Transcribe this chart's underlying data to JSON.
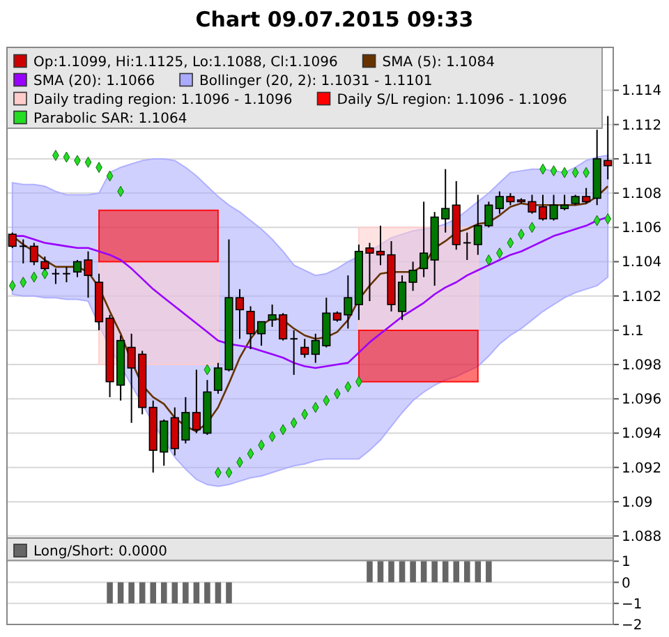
{
  "chart_data": [
    {
      "type": "candlestick",
      "title": "Chart 09.07.2015 09:33",
      "categories": [
        null,
        null,
        null,
        null,
        null,
        null,
        null,
        null,
        null,
        null,
        null,
        null,
        null,
        null,
        null,
        null,
        null,
        null,
        null,
        null,
        null,
        null,
        null,
        null,
        null,
        null,
        null,
        null,
        null,
        null,
        null,
        null,
        null,
        null,
        null,
        null,
        null,
        null,
        null,
        null,
        null,
        null,
        null,
        null,
        null,
        null,
        null,
        null,
        null,
        null,
        null,
        null,
        null,
        null,
        null,
        null
      ],
      "ylim": [
        1.0878,
        1.1165
      ],
      "yticks": [
        1.088,
        1.09,
        1.092,
        1.094,
        1.096,
        1.098,
        1.1,
        1.102,
        1.104,
        1.106,
        1.108,
        1.11,
        1.112,
        1.114
      ],
      "grid": "y",
      "legend": "top",
      "tick_labels": "y",
      "series": [
        {
          "type": "candlestick",
          "name": "Op:1.1099, Hi:1.1125, Lo:1.1088, Cl:1.1096",
          "color": "#cc0000",
          "colors": [
            "#cc0000",
            "#000000",
            "#cc0000",
            "#cc0000",
            "#000000",
            "#000000",
            "#007700",
            "#cc0000",
            "#cc0000",
            "#cc0000",
            "#007700",
            "#cc0000",
            "#cc0000",
            "#cc0000",
            "#007700",
            "#cc0000",
            "#007700",
            "#cc0000",
            "#007700",
            "#007700",
            "#007700",
            "#cc0000",
            "#cc0000",
            "#007700",
            "#007700",
            "#cc0000",
            "#000000",
            "#cc0000",
            "#007700",
            "#007700",
            "#cc0000",
            "#007700",
            "#007700",
            "#cc0000",
            "#cc0000",
            "#cc0000",
            "#007700",
            "#007700",
            "#007700",
            "#007700",
            "#007700",
            "#cc0000",
            "#000000",
            "#007700",
            "#007700",
            "#007700",
            "#cc0000",
            "#cc0000",
            "#cc0000",
            "#cc0000",
            "#007700",
            "#007700",
            "#007700",
            "#cc0000",
            "#007700",
            "#cc0000"
          ],
          "ohlc": [
            [
              1.1056,
              1.1057,
              1.1048,
              1.1049
            ],
            [
              1.1049,
              1.1053,
              1.1039,
              1.1049
            ],
            [
              1.1049,
              1.1051,
              1.1038,
              1.104
            ],
            [
              1.104,
              1.1043,
              1.1035,
              1.1036
            ],
            [
              1.1033,
              1.1036,
              1.1027,
              1.1033
            ],
            [
              1.1033,
              1.1037,
              1.1028,
              1.1033
            ],
            [
              1.1034,
              1.1041,
              1.1031,
              1.104
            ],
            [
              1.1041,
              1.1046,
              1.1019,
              1.1032
            ],
            [
              1.1028,
              1.1033,
              1.1,
              1.1005
            ],
            [
              1.1007,
              1.1009,
              1.0961,
              1.097
            ],
            [
              1.0968,
              1.0997,
              1.0959,
              1.0994
            ],
            [
              1.099,
              1.0998,
              1.0946,
              1.0978
            ],
            [
              1.0986,
              1.0988,
              1.0951,
              1.0955
            ],
            [
              1.0955,
              1.0959,
              1.0917,
              1.093
            ],
            [
              1.0929,
              1.0948,
              1.0921,
              1.0947
            ],
            [
              1.0949,
              1.0955,
              1.0927,
              1.0931
            ],
            [
              1.0936,
              1.0961,
              1.0934,
              1.0952
            ],
            [
              1.0952,
              1.0977,
              1.094,
              1.0942
            ],
            [
              1.094,
              1.0971,
              1.0939,
              1.0964
            ],
            [
              1.0965,
              1.0981,
              1.0963,
              1.0978
            ],
            [
              1.0977,
              1.1053,
              1.0976,
              1.1019
            ],
            [
              1.1019,
              1.1024,
              1.0995,
              1.1012
            ],
            [
              1.1011,
              1.1014,
              1.0989,
              1.0998
            ],
            [
              1.0998,
              1.1005,
              1.0991,
              1.1005
            ],
            [
              1.1006,
              1.1015,
              1.1002,
              1.1009
            ],
            [
              1.1009,
              1.101,
              1.0994,
              1.0995
            ],
            [
              1.0995,
              1.1,
              1.0974,
              1.0995
            ],
            [
              1.099,
              1.0995,
              1.0984,
              1.0986
            ],
            [
              1.0986,
              1.0998,
              1.0981,
              1.0994
            ],
            [
              1.0991,
              1.1019,
              1.099,
              1.101
            ],
            [
              1.101,
              1.1011,
              1.1005,
              1.1006
            ],
            [
              1.1009,
              1.1032,
              1.1001,
              1.1019
            ],
            [
              1.1015,
              1.105,
              1.1006,
              1.1046
            ],
            [
              1.1048,
              1.1051,
              1.1017,
              1.1045
            ],
            [
              1.1046,
              1.1061,
              1.1038,
              1.1044
            ],
            [
              1.1044,
              1.1052,
              1.1011,
              1.1015
            ],
            [
              1.1011,
              1.1032,
              1.1006,
              1.1028
            ],
            [
              1.1028,
              1.104,
              1.1023,
              1.1035
            ],
            [
              1.1036,
              1.1075,
              1.1031,
              1.1045
            ],
            [
              1.1041,
              1.1069,
              1.1026,
              1.1066
            ],
            [
              1.1065,
              1.1094,
              1.1057,
              1.1071
            ],
            [
              1.1073,
              1.1087,
              1.1047,
              1.105
            ],
            [
              1.1051,
              1.1057,
              1.1041,
              1.1051
            ],
            [
              1.105,
              1.1079,
              1.1044,
              1.1061
            ],
            [
              1.1061,
              1.1075,
              1.106,
              1.1073
            ],
            [
              1.1071,
              1.1081,
              1.1068,
              1.1078
            ],
            [
              1.1078,
              1.108,
              1.1073,
              1.1075
            ],
            [
              1.1076,
              1.1077,
              1.1074,
              1.1075
            ],
            [
              1.1075,
              1.1079,
              1.1068,
              1.1069
            ],
            [
              1.1072,
              1.1079,
              1.1064,
              1.1065
            ],
            [
              1.1065,
              1.1079,
              1.1064,
              1.1073
            ],
            [
              1.1071,
              1.1079,
              1.107,
              1.1073
            ],
            [
              1.1074,
              1.1079,
              1.1073,
              1.1078
            ],
            [
              1.1078,
              1.1083,
              1.1074,
              1.1075
            ],
            [
              1.1077,
              1.1117,
              1.1073,
              1.11
            ],
            [
              1.1099,
              1.1125,
              1.1088,
              1.1096
            ]
          ]
        },
        {
          "type": "line",
          "name": "SMA (5): 1.1084",
          "color": "#663300",
          "values": [
            1.1055,
            1.105,
            1.1046,
            1.1041,
            1.1037,
            1.1037,
            1.1037,
            1.1034,
            1.1025,
            1.1011,
            1.0998,
            1.0982,
            1.0968,
            1.0961,
            1.0957,
            1.0949,
            1.0944,
            1.0941,
            1.0946,
            1.0955,
            1.0969,
            1.0984,
            1.0995,
            1.1003,
            1.1007,
            1.1006,
            1.1001,
            1.0997,
            1.0995,
            1.0996,
            1.0999,
            1.1006,
            1.1018,
            1.1026,
            1.1033,
            1.1034,
            1.1034,
            1.1034,
            1.1038,
            1.1048,
            1.1052,
            1.1057,
            1.1059,
            1.1062,
            1.1063,
            1.1067,
            1.1072,
            1.1074,
            1.1073,
            1.1073,
            1.1073,
            1.1073,
            1.1073,
            1.1074,
            1.1078,
            1.1084
          ]
        },
        {
          "type": "line",
          "name": "SMA (20): 1.1066",
          "color": "#9900ff",
          "values": [
            1.1055,
            1.1055,
            1.1053,
            1.1051,
            1.105,
            1.1049,
            1.1048,
            1.1048,
            1.1046,
            1.1044,
            1.1041,
            1.1036,
            1.103,
            1.1024,
            1.1019,
            1.1014,
            1.1009,
            1.1004,
            1.0999,
            1.0994,
            1.0992,
            1.0991,
            1.099,
            1.0988,
            1.0986,
            1.0984,
            1.0981,
            1.0979,
            1.0978,
            1.0979,
            1.098,
            1.0981,
            1.0987,
            1.0993,
            1.0998,
            1.1003,
            1.1008,
            1.1012,
            1.1016,
            1.1021,
            1.1025,
            1.1028,
            1.1032,
            1.1035,
            1.1038,
            1.1041,
            1.1044,
            1.1046,
            1.1049,
            1.1052,
            1.1055,
            1.1057,
            1.1059,
            1.1061,
            1.1064,
            1.1066
          ]
        },
        {
          "type": "area",
          "name": "Bollinger (20, 2): 1.1031 - 1.1101",
          "color": "#aaaaff",
          "values": [
            null,
            null,
            null,
            null,
            null,
            null,
            null,
            null,
            null,
            null,
            null,
            null,
            null,
            null,
            null,
            null,
            null,
            null,
            null,
            null,
            null,
            null,
            null,
            null,
            null,
            null,
            null,
            null,
            null,
            null,
            null,
            null,
            null,
            null,
            null,
            null,
            null,
            null,
            null,
            null,
            null,
            null,
            null,
            null,
            null,
            null,
            null,
            null,
            null,
            null,
            null,
            null,
            null,
            null,
            null,
            null
          ],
          "upper": [
            1.1086,
            1.1085,
            1.1085,
            1.1084,
            1.1081,
            1.1079,
            1.1079,
            1.1079,
            1.108,
            1.1092,
            1.1095,
            1.1097,
            1.1099,
            1.11,
            1.11,
            1.1099,
            1.1095,
            1.109,
            1.1084,
            1.1078,
            1.1073,
            1.1069,
            1.1064,
            1.1059,
            1.1053,
            1.1046,
            1.1038,
            1.1035,
            1.1032,
            1.1033,
            1.1036,
            1.104,
            1.1043,
            1.1046,
            1.105,
            1.1054,
            1.1056,
            1.1058,
            1.1059,
            1.106,
            1.1062,
            1.1065,
            1.107,
            1.1075,
            1.108,
            1.1086,
            1.1092,
            1.1093,
            1.1094,
            1.1094,
            1.1093,
            1.1092,
            1.1095,
            1.1099,
            1.1101,
            1.1102
          ],
          "lower": [
            1.1021,
            1.102,
            1.102,
            1.1019,
            1.1019,
            1.1018,
            1.1018,
            1.1017,
            1.1003,
            1.099,
            1.0979,
            1.0968,
            1.0957,
            1.0946,
            1.0936,
            1.0926,
            1.0919,
            1.0913,
            1.091,
            1.0909,
            1.091,
            1.0912,
            1.0914,
            1.0915,
            1.0917,
            1.0919,
            1.0921,
            1.0922,
            1.0924,
            1.0925,
            1.0925,
            1.0925,
            1.0925,
            1.093,
            1.0936,
            1.0944,
            1.0952,
            1.0959,
            1.0964,
            1.0968,
            1.0971,
            1.0973,
            1.0976,
            1.0979,
            1.0985,
            1.0992,
            1.0997,
            1.1001,
            1.1006,
            1.1011,
            1.1015,
            1.1019,
            1.1022,
            1.1024,
            1.1026,
            1.1031
          ]
        },
        {
          "type": "area",
          "name": "Daily trading region: 1.1096 - 1.1096",
          "color": "#ffcccc",
          "values": [
            null,
            null,
            null,
            null,
            null,
            null,
            null,
            null,
            null,
            null,
            null,
            null,
            null,
            null,
            null,
            null,
            null,
            null,
            null,
            null,
            null,
            null,
            null,
            null,
            null,
            null,
            null,
            null,
            null,
            null,
            null,
            null,
            null,
            null,
            null,
            null,
            null,
            null,
            null,
            null,
            null,
            null,
            null,
            null,
            null,
            null,
            null,
            null,
            null,
            null,
            null,
            null,
            null,
            null,
            null,
            null
          ],
          "upper": [
            null,
            null,
            null,
            null,
            null,
            null,
            null,
            null,
            1.104,
            1.104,
            1.104,
            1.104,
            1.104,
            1.104,
            1.104,
            1.104,
            1.104,
            1.104,
            1.104,
            1.104,
            null,
            null,
            null,
            null,
            null,
            null,
            null,
            null,
            null,
            null,
            null,
            null,
            1.106,
            1.106,
            1.106,
            1.106,
            1.106,
            1.106,
            1.106,
            1.106,
            1.106,
            1.106,
            1.106,
            1.106,
            null,
            null,
            null,
            null,
            null,
            null,
            null,
            null,
            null,
            null,
            null,
            null
          ],
          "lower": [
            null,
            null,
            null,
            null,
            null,
            null,
            null,
            null,
            1.098,
            1.098,
            1.098,
            1.098,
            1.098,
            1.098,
            1.098,
            1.098,
            1.098,
            1.098,
            1.098,
            1.098,
            null,
            null,
            null,
            null,
            null,
            null,
            null,
            null,
            null,
            null,
            null,
            null,
            1.1,
            1.1,
            1.1,
            1.1,
            1.1,
            1.1,
            1.1,
            1.1,
            1.1,
            1.1,
            1.1,
            1.1,
            null,
            null,
            null,
            null,
            null,
            null,
            null,
            null,
            null,
            null,
            null,
            null
          ]
        },
        {
          "type": "area",
          "name": "Daily S/L region: 1.1096 - 1.1096",
          "color": "#ff0000",
          "values": [
            null,
            null,
            null,
            null,
            null,
            null,
            null,
            null,
            null,
            null,
            null,
            null,
            null,
            null,
            null,
            null,
            null,
            null,
            null,
            null,
            null,
            null,
            null,
            null,
            null,
            null,
            null,
            null,
            null,
            null,
            null,
            null,
            null,
            null,
            null,
            null,
            null,
            null,
            null,
            null,
            null,
            null,
            null,
            null,
            null,
            null,
            null,
            null,
            null,
            null,
            null,
            null,
            null,
            null,
            null,
            null
          ],
          "upper": [
            null,
            null,
            null,
            null,
            null,
            null,
            null,
            null,
            1.107,
            1.107,
            1.107,
            1.107,
            1.107,
            1.107,
            1.107,
            1.107,
            1.107,
            1.107,
            1.107,
            1.107,
            null,
            null,
            null,
            null,
            null,
            null,
            null,
            null,
            null,
            null,
            null,
            null,
            1.1,
            1.1,
            1.1,
            1.1,
            1.1,
            1.1,
            1.1,
            1.1,
            1.1,
            1.1,
            1.1,
            1.1,
            null,
            null,
            null,
            null,
            null,
            null,
            null,
            null,
            null,
            null,
            null,
            null
          ],
          "lower": [
            null,
            null,
            null,
            null,
            null,
            null,
            null,
            null,
            1.104,
            1.104,
            1.104,
            1.104,
            1.104,
            1.104,
            1.104,
            1.104,
            1.104,
            1.104,
            1.104,
            1.104,
            null,
            null,
            null,
            null,
            null,
            null,
            null,
            null,
            null,
            null,
            null,
            null,
            1.097,
            1.097,
            1.097,
            1.097,
            1.097,
            1.097,
            1.097,
            1.097,
            1.097,
            1.097,
            1.097,
            1.097,
            null,
            null,
            null,
            null,
            null,
            null,
            null,
            null,
            null,
            null,
            null,
            null
          ]
        },
        {
          "type": "scatter",
          "name": "Parabolic SAR: 1.1064",
          "color": "#22dd22",
          "marker": "diamond",
          "values": [
            1.1026,
            1.1028,
            1.1031,
            1.1033,
            1.1102,
            1.1101,
            1.1099,
            1.1098,
            1.1095,
            1.109,
            1.1081,
            null,
            null,
            null,
            null,
            null,
            null,
            null,
            1.0977,
            1.0917,
            1.0917,
            1.0923,
            1.0928,
            1.0933,
            1.0938,
            1.0942,
            1.0946,
            1.0951,
            1.0955,
            1.0959,
            1.0963,
            1.0967,
            1.097,
            null,
            null,
            null,
            null,
            null,
            null,
            null,
            null,
            null,
            null,
            null,
            1.1041,
            1.1045,
            1.1051,
            1.1056,
            1.106,
            1.1094,
            1.1093,
            1.1092,
            1.1092,
            1.1092,
            1.1064,
            1.1065
          ]
        }
      ]
    },
    {
      "type": "bar",
      "categories": [
        null,
        null,
        null,
        null,
        null,
        null,
        null,
        null,
        null,
        null,
        null,
        null,
        null,
        null,
        null,
        null,
        null,
        null,
        null,
        null,
        null,
        null,
        null,
        null,
        null,
        null,
        null,
        null,
        null,
        null,
        null,
        null,
        null,
        null,
        null,
        null,
        null,
        null,
        null,
        null,
        null,
        null,
        null,
        null,
        null,
        null,
        null,
        null,
        null,
        null,
        null,
        null,
        null,
        null,
        null,
        null
      ],
      "ylim": [
        -2,
        2.1
      ],
      "yticks": [
        -2,
        -1,
        0,
        1
      ],
      "grid": "y",
      "legend": "top",
      "tick_labels": "y",
      "series": [
        {
          "name": "Long/Short: 0.0000",
          "color": "#666666",
          "values": [
            0,
            0,
            0,
            0,
            0,
            0,
            0,
            0,
            0,
            -1,
            -1,
            -1,
            -1,
            -1,
            -1,
            -1,
            -1,
            -1,
            -1,
            -1,
            -1,
            0,
            0,
            0,
            0,
            0,
            0,
            0,
            0,
            0,
            0,
            0,
            0,
            1,
            1,
            1,
            1,
            1,
            1,
            1,
            1,
            1,
            1,
            1,
            1,
            0,
            0,
            0,
            0,
            0,
            0,
            0,
            0,
            0,
            0,
            0
          ]
        }
      ]
    }
  ]
}
